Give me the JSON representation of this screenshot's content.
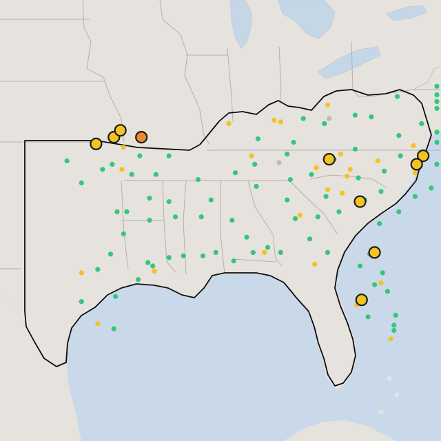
{
  "map": {
    "title": "",
    "colors": {
      "water": "#c9d9ea",
      "land": "#e6e2de",
      "green": "#34c77b",
      "yellow": "#f3c322",
      "orange": "#ea8a2e",
      "gray": "#b9bbbf",
      "outline": "#0d0d0d"
    },
    "markers": [
      {
        "cat": "green",
        "lon": -98.2,
        "lat": 35.3
      },
      {
        "cat": "green",
        "lon": -97.6,
        "lat": 35.6
      },
      {
        "cat": "green",
        "lon": -96.4,
        "lat": 35.0
      },
      {
        "cat": "green",
        "lon": -95.9,
        "lat": 36.1
      },
      {
        "cat": "green",
        "lon": -94.9,
        "lat": 35.0
      },
      {
        "cat": "green",
        "lon": -95.3,
        "lat": 33.6
      },
      {
        "cat": "green",
        "lon": -96.7,
        "lat": 32.8
      },
      {
        "cat": "green",
        "lon": -97.3,
        "lat": 32.8
      },
      {
        "cat": "green",
        "lon": -95.3,
        "lat": 32.3
      },
      {
        "cat": "green",
        "lon": -94.1,
        "lat": 33.4
      },
      {
        "cat": "green",
        "lon": -96.9,
        "lat": 31.5
      },
      {
        "cat": "green",
        "lon": -97.7,
        "lat": 30.3
      },
      {
        "cat": "green",
        "lon": -98.5,
        "lat": 29.4
      },
      {
        "cat": "green",
        "lon": -95.4,
        "lat": 29.8
      },
      {
        "cat": "green",
        "lon": -95.1,
        "lat": 29.6
      },
      {
        "cat": "green",
        "lon": -94.1,
        "lat": 30.1
      },
      {
        "cat": "green",
        "lon": -97.4,
        "lat": 27.8
      },
      {
        "cat": "green",
        "lon": -97.5,
        "lat": 25.9
      },
      {
        "cat": "green",
        "lon": -99.5,
        "lat": 27.5
      },
      {
        "cat": "green",
        "lon": -96.0,
        "lat": 28.8
      },
      {
        "cat": "green",
        "lon": -100.4,
        "lat": 35.8
      },
      {
        "cat": "green",
        "lon": -99.5,
        "lat": 34.5
      },
      {
        "cat": "green",
        "lon": -92.3,
        "lat": 34.7
      },
      {
        "cat": "green",
        "lon": -94.1,
        "lat": 36.1
      },
      {
        "cat": "green",
        "lon": -91.5,
        "lat": 33.5
      },
      {
        "cat": "green",
        "lon": -93.7,
        "lat": 32.5
      },
      {
        "cat": "green",
        "lon": -92.1,
        "lat": 32.5
      },
      {
        "cat": "green",
        "lon": -91.2,
        "lat": 30.4
      },
      {
        "cat": "green",
        "lon": -90.1,
        "lat": 29.9
      },
      {
        "cat": "green",
        "lon": -92.0,
        "lat": 30.2
      },
      {
        "cat": "green",
        "lon": -93.2,
        "lat": 30.2
      },
      {
        "cat": "green",
        "lon": -90.2,
        "lat": 32.3
      },
      {
        "cat": "green",
        "lon": -88.7,
        "lat": 34.3
      },
      {
        "cat": "green",
        "lon": -89.3,
        "lat": 31.3
      },
      {
        "cat": "green",
        "lon": -88.9,
        "lat": 30.4
      },
      {
        "cat": "green",
        "lon": -88.0,
        "lat": 30.7
      },
      {
        "cat": "green",
        "lon": -86.8,
        "lat": 33.5
      },
      {
        "cat": "green",
        "lon": -86.3,
        "lat": 32.4
      },
      {
        "cat": "green",
        "lon": -85.4,
        "lat": 31.2
      },
      {
        "cat": "green",
        "lon": -86.6,
        "lat": 34.7
      },
      {
        "cat": "green",
        "lon": -87.2,
        "lat": 30.4
      },
      {
        "cat": "green",
        "lon": -84.3,
        "lat": 30.4
      },
      {
        "cat": "green",
        "lon": -84.4,
        "lat": 33.7
      },
      {
        "cat": "green",
        "lon": -83.6,
        "lat": 32.8
      },
      {
        "cat": "green",
        "lon": -81.1,
        "lat": 32.1
      },
      {
        "cat": "green",
        "lon": -82.0,
        "lat": 33.5
      },
      {
        "cat": "green",
        "lon": -84.9,
        "lat": 32.5
      },
      {
        "cat": "green",
        "lon": -81.7,
        "lat": 30.3
      },
      {
        "cat": "green",
        "lon": -81.4,
        "lat": 28.5
      },
      {
        "cat": "green",
        "lon": -80.6,
        "lat": 28.1
      },
      {
        "cat": "green",
        "lon": -80.1,
        "lat": 26.7
      },
      {
        "cat": "green",
        "lon": -80.2,
        "lat": 26.1
      },
      {
        "cat": "green",
        "lon": -80.2,
        "lat": 25.8
      },
      {
        "cat": "green",
        "lon": -81.8,
        "lat": 26.6
      },
      {
        "cat": "green",
        "lon": -82.3,
        "lat": 29.6
      },
      {
        "cat": "green",
        "lon": -80.9,
        "lat": 29.2
      },
      {
        "cat": "green",
        "lon": -81.0,
        "lat": 34.0
      },
      {
        "cat": "green",
        "lon": -79.9,
        "lat": 32.8
      },
      {
        "cat": "green",
        "lon": -82.4,
        "lat": 34.8
      },
      {
        "cat": "green",
        "lon": -78.9,
        "lat": 33.7
      },
      {
        "cat": "green",
        "lon": -80.8,
        "lat": 35.2
      },
      {
        "cat": "green",
        "lon": -79.8,
        "lat": 36.1
      },
      {
        "cat": "green",
        "lon": -78.6,
        "lat": 35.8
      },
      {
        "cat": "green",
        "lon": -77.9,
        "lat": 34.2
      },
      {
        "cat": "green",
        "lon": -77.0,
        "lat": 35.6
      },
      {
        "cat": "green",
        "lon": -76.3,
        "lat": 36.9
      },
      {
        "cat": "green",
        "lon": -77.4,
        "lat": 37.5
      },
      {
        "cat": "green",
        "lon": -79.9,
        "lat": 37.3
      },
      {
        "cat": "green",
        "lon": -78.5,
        "lat": 38.0
      },
      {
        "cat": "green",
        "lon": -81.6,
        "lat": 38.4
      },
      {
        "cat": "green",
        "lon": -80.0,
        "lat": 39.6
      },
      {
        "cat": "green",
        "lon": -82.6,
        "lat": 36.5
      },
      {
        "cat": "green",
        "lon": -83.9,
        "lat": 35.9
      },
      {
        "cat": "green",
        "lon": -85.3,
        "lat": 35.0
      },
      {
        "cat": "green",
        "lon": -86.8,
        "lat": 36.2
      },
      {
        "cat": "green",
        "lon": -90.0,
        "lat": 35.1
      },
      {
        "cat": "green",
        "lon": -88.8,
        "lat": 35.6
      },
      {
        "cat": "green",
        "lon": -84.5,
        "lat": 38.0
      },
      {
        "cat": "green",
        "lon": -85.8,
        "lat": 38.3
      },
      {
        "cat": "green",
        "lon": -86.4,
        "lat": 36.9
      },
      {
        "cat": "green",
        "lon": -88.6,
        "lat": 37.1
      },
      {
        "cat": "green",
        "lon": -82.6,
        "lat": 38.5
      },
      {
        "cat": "green",
        "lon": -76.6,
        "lat": 39.3
      },
      {
        "cat": "green",
        "lon": -77.0,
        "lat": 38.9
      },
      {
        "cat": "green",
        "lon": -75.5,
        "lat": 39.7
      },
      {
        "cat": "green",
        "lon": -75.1,
        "lat": 40.2
      },
      {
        "cat": "yellow",
        "lon": -97.3,
        "lat": 37.7
      },
      {
        "cat": "yellow",
        "lon": -96.9,
        "lat": 36.6
      },
      {
        "cat": "yellow",
        "lon": -97.0,
        "lat": 35.3
      },
      {
        "cat": "yellow",
        "lon": -95.0,
        "lat": 29.3
      },
      {
        "cat": "yellow",
        "lon": -98.5,
        "lat": 26.2
      },
      {
        "cat": "yellow",
        "lon": -99.5,
        "lat": 29.2
      },
      {
        "cat": "yellow",
        "lon": -84.3,
        "lat": 34.1
      },
      {
        "cat": "yellow",
        "lon": -83.4,
        "lat": 33.9
      },
      {
        "cat": "yellow",
        "lon": -83.1,
        "lat": 34.9
      },
      {
        "cat": "yellow",
        "lon": -82.9,
        "lat": 35.3
      },
      {
        "cat": "yellow",
        "lon": -81.2,
        "lat": 35.8
      },
      {
        "cat": "yellow",
        "lon": -83.5,
        "lat": 36.2
      },
      {
        "cat": "yellow",
        "lon": -85.0,
        "lat": 35.4
      },
      {
        "cat": "yellow",
        "lon": -86.0,
        "lat": 32.6
      },
      {
        "cat": "yellow",
        "lon": -88.2,
        "lat": 30.4
      },
      {
        "cat": "yellow",
        "lon": -87.6,
        "lat": 38.2
      },
      {
        "cat": "yellow",
        "lon": -87.2,
        "lat": 38.1
      },
      {
        "cat": "yellow",
        "lon": -85.1,
        "lat": 29.7
      },
      {
        "cat": "yellow",
        "lon": -82.5,
        "lat": 27.3
      },
      {
        "cat": "yellow",
        "lon": -81.0,
        "lat": 28.6
      },
      {
        "cat": "yellow",
        "lon": -80.4,
        "lat": 25.3
      },
      {
        "cat": "yellow",
        "lon": -84.3,
        "lat": 39.1
      },
      {
        "cat": "yellow",
        "lon": -79.0,
        "lat": 36.7
      },
      {
        "cat": "yellow",
        "lon": -78.9,
        "lat": 35.1
      },
      {
        "cat": "yellow",
        "lon": -89.0,
        "lat": 36.1
      },
      {
        "cat": "yellow",
        "lon": -90.4,
        "lat": 38.0
      },
      {
        "cat": "yellow",
        "big": true,
        "lon": -98.6,
        "lat": 36.8
      },
      {
        "cat": "yellow",
        "big": true,
        "lon": -97.5,
        "lat": 37.2
      },
      {
        "cat": "yellow",
        "big": true,
        "lon": -97.1,
        "lat": 37.6
      },
      {
        "cat": "yellow",
        "big": true,
        "lon": -84.2,
        "lat": 35.9
      },
      {
        "cat": "yellow",
        "big": true,
        "lon": -78.4,
        "lat": 36.1
      },
      {
        "cat": "yellow",
        "big": true,
        "lon": -78.8,
        "lat": 35.6
      },
      {
        "cat": "yellow",
        "big": true,
        "lon": -82.3,
        "lat": 33.4
      },
      {
        "cat": "yellow",
        "big": true,
        "lon": -81.4,
        "lat": 30.4
      },
      {
        "cat": "yellow",
        "big": true,
        "lon": -82.2,
        "lat": 27.6
      },
      {
        "cat": "orange",
        "big": true,
        "lon": -95.8,
        "lat": 37.2
      },
      {
        "cat": "gray",
        "lon": -84.2,
        "lat": 38.3
      },
      {
        "cat": "gray",
        "lon": -87.3,
        "lat": 35.7
      }
    ]
  }
}
